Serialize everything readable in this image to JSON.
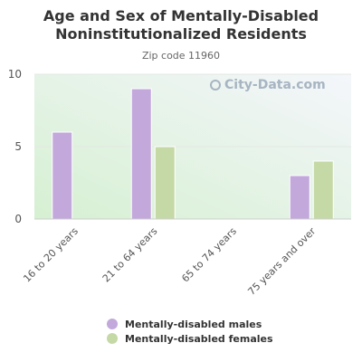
{
  "title": "Age and Sex of Mentally-Disabled Noninstitutionalized Residents",
  "subtitle": "Zip code 11960",
  "watermark": "City-Data.com",
  "colors": {
    "males": "#c3a8dc",
    "females": "#c5d9a6",
    "axis": "#cccccc",
    "text": "#555555"
  },
  "chart_data": {
    "type": "bar",
    "categories": [
      "16 to 20 years",
      "21 to 64 years",
      "65 to 74 years",
      "75 years and over"
    ],
    "series": [
      {
        "name": "Mentally-disabled males",
        "values": [
          6,
          9,
          0,
          3
        ]
      },
      {
        "name": "Mentally-disabled females",
        "values": [
          0,
          5,
          0,
          4
        ]
      }
    ],
    "yticks": [
      0,
      5,
      10
    ],
    "ylim": [
      0,
      10
    ],
    "grid": true,
    "legend_position": "bottom"
  }
}
